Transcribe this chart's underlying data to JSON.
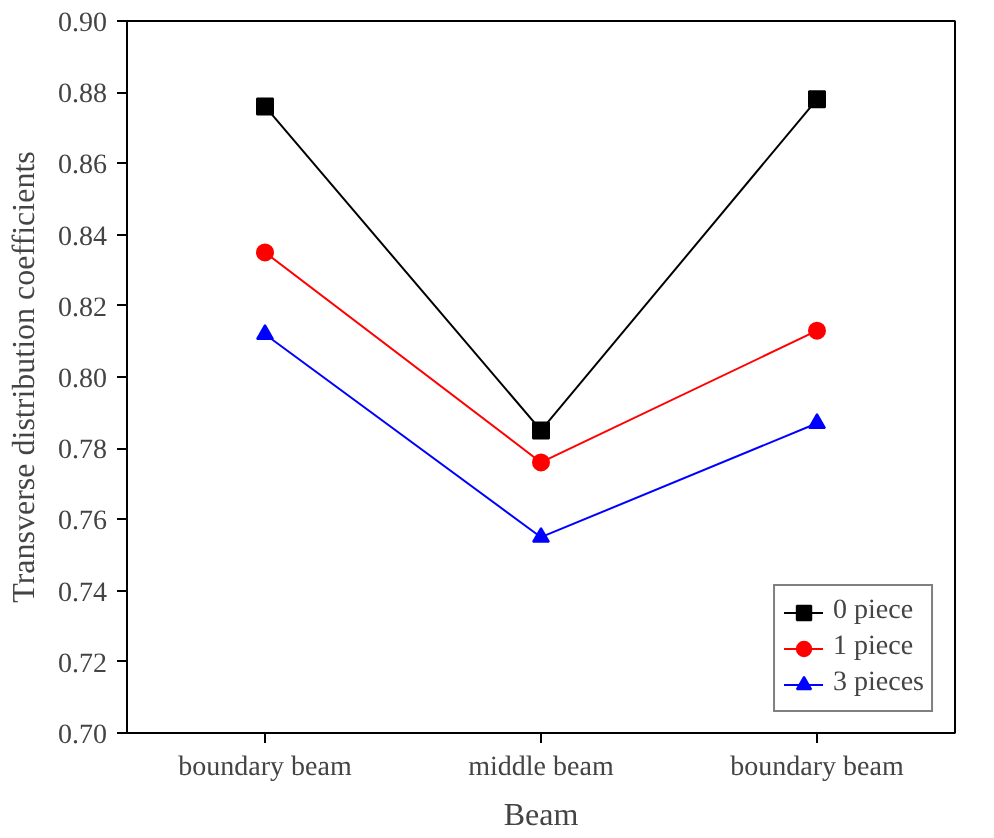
{
  "chart_data": {
    "type": "line",
    "xlabel": "Beam",
    "ylabel": "Transverse distribution coefficients",
    "categories": [
      "boundary beam",
      "middle beam",
      "boundary beam"
    ],
    "series": [
      {
        "name": "0 piece",
        "color": "#000000",
        "marker": "square",
        "values": [
          0.876,
          0.785,
          0.878
        ]
      },
      {
        "name": "1 piece",
        "color": "#ff0000",
        "marker": "circle",
        "values": [
          0.835,
          0.776,
          0.813
        ]
      },
      {
        "name": "3 pieces",
        "color": "#0000ff",
        "marker": "triangle",
        "values": [
          0.812,
          0.755,
          0.787
        ]
      }
    ],
    "ylim": [
      0.7,
      0.9
    ],
    "yticks": [
      {
        "value": 0.7,
        "label": "0.70"
      },
      {
        "value": 0.72,
        "label": "0.72"
      },
      {
        "value": 0.74,
        "label": "0.74"
      },
      {
        "value": 0.76,
        "label": "0.76"
      },
      {
        "value": 0.78,
        "label": "0.78"
      },
      {
        "value": 0.8,
        "label": "0.80"
      },
      {
        "value": 0.82,
        "label": "0.82"
      },
      {
        "value": 0.84,
        "label": "0.84"
      },
      {
        "value": 0.86,
        "label": "0.86"
      },
      {
        "value": 0.88,
        "label": "0.88"
      },
      {
        "value": 0.9,
        "label": "0.90"
      }
    ],
    "grid": false,
    "legend": "bottom right",
    "line_style": "solid"
  }
}
